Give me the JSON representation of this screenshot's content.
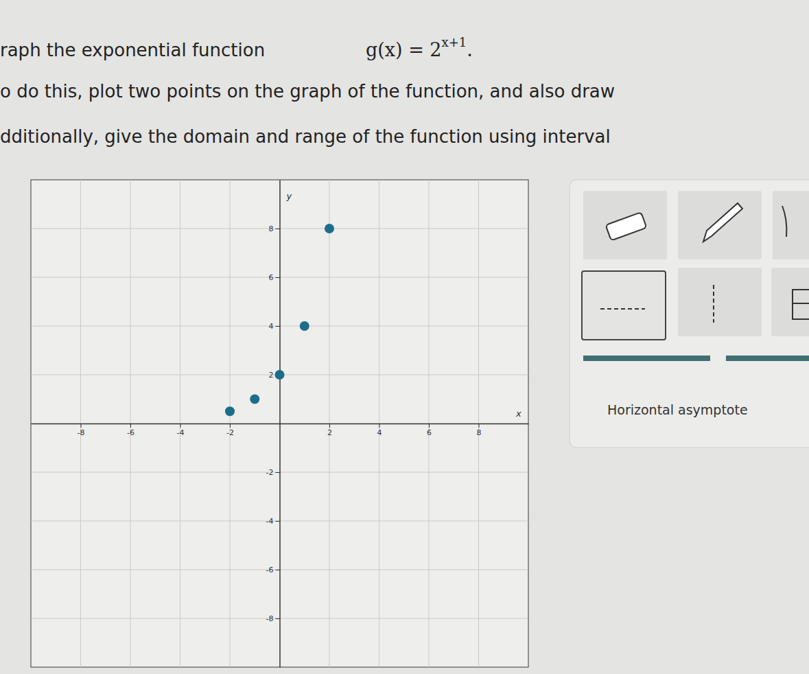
{
  "chart_data": {
    "type": "scatter",
    "x": [
      -2,
      -1,
      0,
      1,
      2
    ],
    "values": [
      0.5,
      1,
      2,
      4,
      8
    ],
    "color": "#1b6e8a",
    "marker": "circle",
    "xlim": [
      -10,
      10
    ],
    "ylim": [
      -10,
      10
    ],
    "xticks": [
      -8,
      -6,
      -4,
      -2,
      2,
      4,
      6,
      8
    ],
    "yticks": [
      -8,
      -6,
      -4,
      -2,
      2,
      4,
      6,
      8
    ],
    "grid": true,
    "x_label": "x",
    "y_label": "y"
  },
  "page": {
    "prompt": [
      "raph the exponential function",
      "o do this, plot two points on the graph of the function, and also draw",
      "dditionally, give the domain and range of the function using interval"
    ],
    "function_name": "g(x) = 2",
    "exponent": "x+1",
    "period": ".",
    "tool_label": "Horizontal asymptote"
  }
}
